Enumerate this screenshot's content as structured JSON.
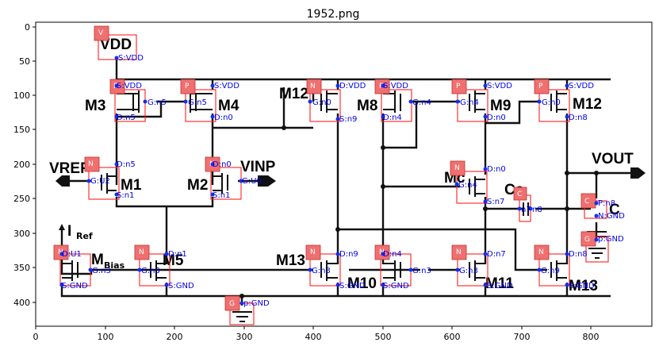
{
  "title": "1952.png",
  "axes": {
    "x_ticks": [
      "0",
      "100",
      "200",
      "300",
      "400",
      "500",
      "600",
      "700",
      "800"
    ],
    "y_ticks": [
      "0",
      "50",
      "100",
      "150",
      "200",
      "250",
      "300",
      "350",
      "400"
    ]
  },
  "nets": {
    "vdd": "VDD",
    "vref": "VREF",
    "vinp": "VINP",
    "vout": "VOUT",
    "iref": "I",
    "iref_sub": "Ref",
    "c_label": "C"
  },
  "devices": [
    {
      "id": "m3",
      "name": "M3",
      "type": "P",
      "pins": [
        "S:VDD",
        "G:n5",
        "D:n5"
      ]
    },
    {
      "id": "m4",
      "name": "M4",
      "type": "P",
      "pins": [
        "S:VDD",
        "G:n5",
        "D:n0"
      ]
    },
    {
      "id": "m12a",
      "name": "M12",
      "type": "N",
      "pins": [
        "D:VDD",
        "G:n0",
        "S:n9"
      ]
    },
    {
      "id": "m8",
      "name": "M8",
      "type": "P",
      "pins": [
        "S:VDD",
        "G:n4",
        "D:n4"
      ]
    },
    {
      "id": "m9",
      "name": "M9",
      "type": "P",
      "pins": [
        "S:VDD",
        "G:n4",
        "D:n0"
      ]
    },
    {
      "id": "m12b",
      "name": "M12",
      "type": "P",
      "pins": [
        "S:VDD",
        "G:n0",
        "D:n8"
      ]
    },
    {
      "id": "m1",
      "name": "M1",
      "type": "N",
      "pins": [
        "D:n5",
        "G:U2",
        "S:n1"
      ]
    },
    {
      "id": "m2",
      "name": "M2",
      "type": "N",
      "pins": [
        "D:n0",
        "G:U0",
        "S:n1"
      ]
    },
    {
      "id": "mc",
      "name": "Mc",
      "type": "N",
      "pins": [
        "D:n0",
        "G:n4",
        "S:n7"
      ]
    },
    {
      "id": "cc",
      "name": "Cc",
      "type": "C",
      "pins": [
        "n7",
        "n8"
      ]
    },
    {
      "id": "cl",
      "name": "C",
      "type": "C",
      "pins": [
        "P:n8",
        "N:GND"
      ]
    },
    {
      "id": "mbias",
      "name": "M",
      "sub": "Bias",
      "type": "N",
      "pins": [
        "D:U1",
        "G:n3",
        "S:GND"
      ]
    },
    {
      "id": "m5",
      "name": "M5",
      "type": "N",
      "pins": [
        "D:n1",
        "G:n3",
        "S:GND"
      ]
    },
    {
      "id": "m13a",
      "name": "M13",
      "type": "N",
      "pins": [
        "D:n9",
        "G:n3",
        "S:GND"
      ]
    },
    {
      "id": "m10",
      "name": "M10",
      "type": "N",
      "pins": [
        "D:n4",
        "G:n3",
        "S:GND"
      ]
    },
    {
      "id": "m11",
      "name": "M11",
      "type": "N",
      "pins": [
        "D:n7",
        "G:n3",
        "S:GND"
      ]
    },
    {
      "id": "m13b",
      "name": "M13",
      "type": "N",
      "pins": [
        "D:n8",
        "G:n9",
        "S:GND"
      ]
    }
  ],
  "supplies": [
    {
      "id": "vdd",
      "tag": "V",
      "pin": "S:VDD"
    },
    {
      "id": "gnd1",
      "tag": "G",
      "pin": "p:GND"
    },
    {
      "id": "gnd2",
      "tag": "G",
      "pin": "p:GND"
    }
  ],
  "colors": {
    "box": "#ff2020",
    "tag": "#f07070",
    "pin": "#0000ee",
    "wire": "#111111"
  }
}
